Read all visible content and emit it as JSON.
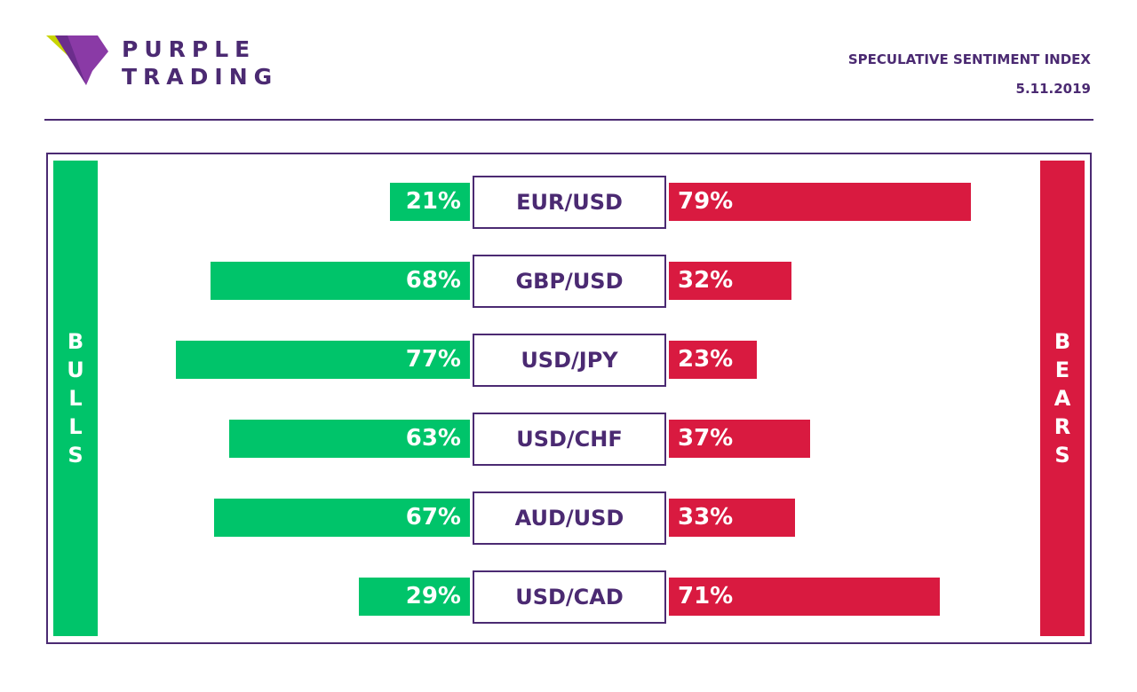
{
  "brand": {
    "line1": "PURPLE",
    "line2": "TRADING"
  },
  "header": {
    "title": "SPECULATIVE SENTIMENT INDEX",
    "date": "5.11.2019"
  },
  "colors": {
    "brand": "#4b2a72",
    "bulls": "#00c46a",
    "bears": "#d91a40"
  },
  "chart_data": {
    "type": "bar",
    "categories": [
      "EUR/USD",
      "GBP/USD",
      "USD/JPY",
      "USD/CHF",
      "AUD/USD",
      "USD/CAD"
    ],
    "series": [
      {
        "name": "BULLS",
        "values": [
          21,
          68,
          77,
          63,
          67,
          29
        ]
      },
      {
        "name": "BEARS",
        "values": [
          79,
          32,
          23,
          37,
          33,
          71
        ]
      }
    ],
    "unit": "%",
    "ylim": [
      0,
      100
    ]
  }
}
